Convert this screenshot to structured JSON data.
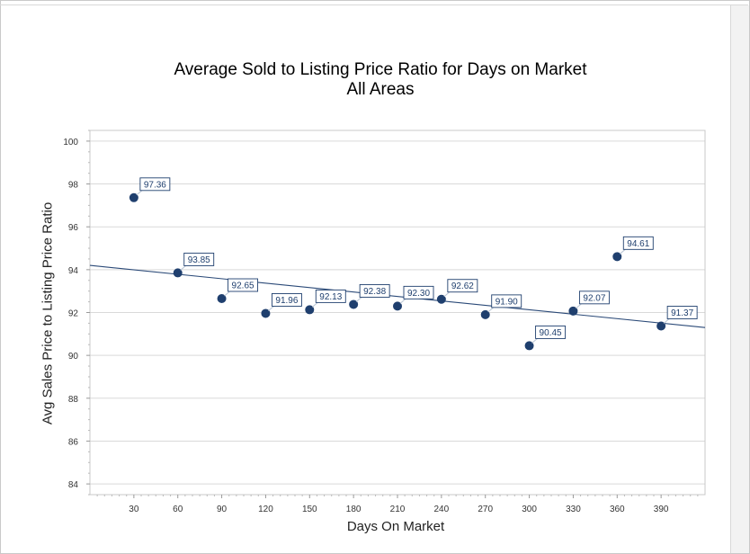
{
  "chart_data": {
    "type": "scatter",
    "title": "Average Sold to Listing Price Ratio for Days on Market",
    "subtitle": "All Areas",
    "xlabel": "Days On Market",
    "ylabel": "Avg Sales Price to Listing Price Ratio",
    "xlim": [
      0,
      420
    ],
    "ylim": [
      83.5,
      100.5
    ],
    "xticks": [
      30,
      60,
      90,
      120,
      150,
      180,
      210,
      240,
      270,
      300,
      330,
      360,
      390
    ],
    "yticks": [
      84,
      86,
      88,
      90,
      92,
      94,
      96,
      98,
      100
    ],
    "grid": "horizontal",
    "legend": "none",
    "marker_color": "#1f3f6e",
    "trendline_color": "#2b4a78",
    "trendline": {
      "x": [
        0,
        420
      ],
      "y": [
        94.2,
        91.3
      ]
    },
    "points": [
      {
        "x": 30,
        "y": 97.36,
        "label": "97.36"
      },
      {
        "x": 60,
        "y": 93.85,
        "label": "93.85"
      },
      {
        "x": 90,
        "y": 92.65,
        "label": "92.65"
      },
      {
        "x": 120,
        "y": 91.96,
        "label": "91.96"
      },
      {
        "x": 150,
        "y": 92.13,
        "label": "92.13"
      },
      {
        "x": 180,
        "y": 92.38,
        "label": "92.38"
      },
      {
        "x": 210,
        "y": 92.3,
        "label": "92.30"
      },
      {
        "x": 240,
        "y": 92.62,
        "label": "92.62"
      },
      {
        "x": 270,
        "y": 91.9,
        "label": "91.90"
      },
      {
        "x": 300,
        "y": 90.45,
        "label": "90.45"
      },
      {
        "x": 330,
        "y": 92.07,
        "label": "92.07"
      },
      {
        "x": 360,
        "y": 94.61,
        "label": "94.61"
      },
      {
        "x": 390,
        "y": 91.37,
        "label": "91.37"
      }
    ]
  }
}
